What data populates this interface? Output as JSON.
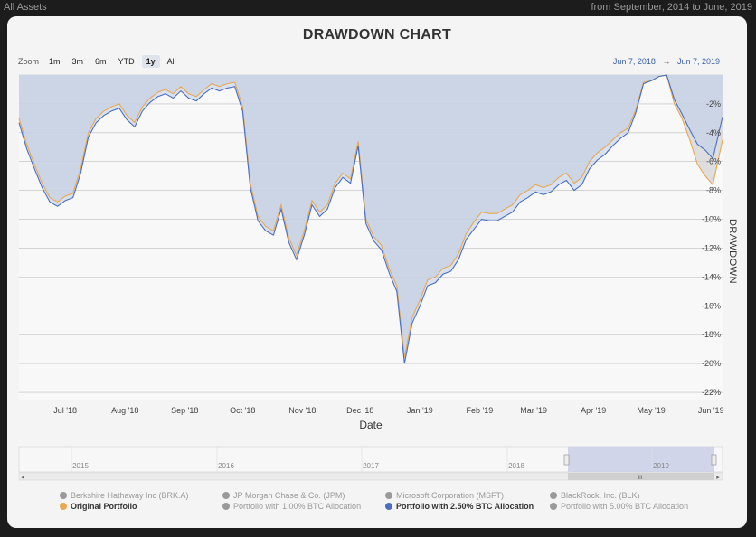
{
  "header": {
    "left_label": "All Assets",
    "right_label": "from September, 2014 to June, 2019"
  },
  "zoom": {
    "label": "Zoom",
    "buttons": [
      "1m",
      "3m",
      "6m",
      "YTD",
      "1y",
      "All"
    ],
    "active": "1y"
  },
  "date_range": {
    "from": "Jun 7, 2018",
    "arrow": "→",
    "to": "Jun 7, 2019"
  },
  "navigator": {
    "years": [
      "2015",
      "2016",
      "2017",
      "2018",
      "2019"
    ],
    "scroll_left": "◂",
    "scroll_right": "▸",
    "grip": "III"
  },
  "legend": [
    {
      "label": "Berkshire Hathaway Inc (BRK.A)",
      "color": "#9a9a9a",
      "active": false
    },
    {
      "label": "JP Morgan Chase & Co. (JPM)",
      "color": "#9a9a9a",
      "active": false
    },
    {
      "label": "Microsoft Corporation (MSFT)",
      "color": "#9a9a9a",
      "active": false
    },
    {
      "label": "BlackRock, Inc. (BLK)",
      "color": "#9a9a9a",
      "active": false
    },
    {
      "label": "Original Portfolio",
      "color": "#e8a850",
      "active": true
    },
    {
      "label": "Portfolio with 1.00% BTC Allocation",
      "color": "#9a9a9a",
      "active": false
    },
    {
      "label": "Portfolio with 2.50% BTC Allocation",
      "color": "#4a6fc0",
      "active": true
    },
    {
      "label": "Portfolio with 5.00% BTC Allocation",
      "color": "#9a9a9a",
      "active": false
    }
  ],
  "chart_data": {
    "type": "area",
    "title": "DRAWDOWN CHART",
    "xlabel": "Date",
    "ylabel": "DRAWDOWN",
    "ylim": [
      -22.5,
      0
    ],
    "y_ticks": [
      -2,
      -4,
      -6,
      -8,
      -10,
      -12,
      -14,
      -16,
      -18,
      -20,
      -22
    ],
    "y_tick_labels": [
      "-2%",
      "-4%",
      "-6%",
      "-8%",
      "-10%",
      "-12%",
      "-14%",
      "-16%",
      "-18%",
      "-20%",
      "-22%"
    ],
    "x_ticks": [
      {
        "date": "2018-07-01",
        "label": "Jul '18"
      },
      {
        "date": "2018-08-01",
        "label": "Aug '18"
      },
      {
        "date": "2018-09-01",
        "label": "Sep '18"
      },
      {
        "date": "2018-10-01",
        "label": "Oct '18"
      },
      {
        "date": "2018-11-01",
        "label": "Nov '18"
      },
      {
        "date": "2018-12-01",
        "label": "Dec '18"
      },
      {
        "date": "2019-01-01",
        "label": "Jan '19"
      },
      {
        "date": "2019-02-01",
        "label": "Feb '19"
      },
      {
        "date": "2019-03-01",
        "label": "Mar '19"
      },
      {
        "date": "2019-04-01",
        "label": "Apr '19"
      },
      {
        "date": "2019-05-01",
        "label": "May '19"
      },
      {
        "date": "2019-06-01",
        "label": "Jun '19"
      }
    ],
    "x": [
      "2018-06-07",
      "2018-06-11",
      "2018-06-15",
      "2018-06-19",
      "2018-06-23",
      "2018-06-27",
      "2018-07-01",
      "2018-07-05",
      "2018-07-09",
      "2018-07-13",
      "2018-07-17",
      "2018-07-21",
      "2018-07-25",
      "2018-07-29",
      "2018-08-02",
      "2018-08-06",
      "2018-08-10",
      "2018-08-14",
      "2018-08-18",
      "2018-08-22",
      "2018-08-26",
      "2018-08-30",
      "2018-09-03",
      "2018-09-07",
      "2018-09-11",
      "2018-09-15",
      "2018-09-19",
      "2018-09-23",
      "2018-09-27",
      "2018-10-01",
      "2018-10-05",
      "2018-10-09",
      "2018-10-13",
      "2018-10-17",
      "2018-10-21",
      "2018-10-25",
      "2018-10-29",
      "2018-11-02",
      "2018-11-06",
      "2018-11-10",
      "2018-11-14",
      "2018-11-18",
      "2018-11-22",
      "2018-11-26",
      "2018-11-30",
      "2018-12-04",
      "2018-12-08",
      "2018-12-12",
      "2018-12-16",
      "2018-12-20",
      "2018-12-24",
      "2018-12-28",
      "2019-01-01",
      "2019-01-05",
      "2019-01-09",
      "2019-01-13",
      "2019-01-17",
      "2019-01-21",
      "2019-01-25",
      "2019-01-29",
      "2019-02-02",
      "2019-02-06",
      "2019-02-10",
      "2019-02-14",
      "2019-02-18",
      "2019-02-22",
      "2019-02-26",
      "2019-03-02",
      "2019-03-06",
      "2019-03-10",
      "2019-03-14",
      "2019-03-18",
      "2019-03-22",
      "2019-03-26",
      "2019-03-30",
      "2019-04-03",
      "2019-04-07",
      "2019-04-11",
      "2019-04-15",
      "2019-04-19",
      "2019-04-23",
      "2019-04-27",
      "2019-05-01",
      "2019-05-05",
      "2019-05-09",
      "2019-05-13",
      "2019-05-17",
      "2019-05-21",
      "2019-05-25",
      "2019-05-29",
      "2019-06-02",
      "2019-06-07"
    ],
    "series": [
      {
        "name": "Original Portfolio",
        "color": "#e8a850",
        "values": [
          -3.0,
          -4.8,
          -6.2,
          -7.5,
          -8.5,
          -8.8,
          -8.4,
          -8.2,
          -6.5,
          -4.0,
          -3.0,
          -2.5,
          -2.2,
          -2.0,
          -2.8,
          -3.3,
          -2.2,
          -1.6,
          -1.2,
          -1.0,
          -1.3,
          -0.8,
          -1.3,
          -1.5,
          -1.0,
          -0.6,
          -0.8,
          -0.6,
          -0.5,
          -2.2,
          -7.5,
          -9.8,
          -10.5,
          -10.8,
          -9.0,
          -11.3,
          -12.5,
          -10.8,
          -8.7,
          -9.5,
          -9.0,
          -7.5,
          -6.8,
          -7.2,
          -4.6,
          -10.0,
          -11.2,
          -11.8,
          -13.4,
          -14.6,
          -19.6,
          -16.8,
          -15.6,
          -14.2,
          -14.0,
          -13.4,
          -13.2,
          -12.4,
          -11.0,
          -10.2,
          -9.5,
          -9.6,
          -9.6,
          -9.3,
          -9.0,
          -8.3,
          -8.0,
          -7.6,
          -7.8,
          -7.6,
          -7.1,
          -6.8,
          -7.5,
          -7.1,
          -6.0,
          -5.4,
          -5.0,
          -4.5,
          -4.0,
          -3.7,
          -2.4,
          -0.5,
          -0.4,
          -0.1,
          0.0,
          -2.0,
          -3.0,
          -4.5,
          -6.2,
          -7.0,
          -7.6,
          -4.5
        ]
      },
      {
        "name": "Portfolio with 2.50% BTC Allocation",
        "color": "#4a6fc0",
        "values": [
          -3.3,
          -5.1,
          -6.5,
          -7.8,
          -8.8,
          -9.1,
          -8.7,
          -8.5,
          -6.8,
          -4.3,
          -3.3,
          -2.8,
          -2.5,
          -2.3,
          -3.1,
          -3.6,
          -2.5,
          -1.9,
          -1.5,
          -1.3,
          -1.6,
          -1.1,
          -1.6,
          -1.8,
          -1.3,
          -0.9,
          -1.1,
          -0.9,
          -0.8,
          -2.5,
          -7.8,
          -10.1,
          -10.8,
          -11.1,
          -9.3,
          -11.6,
          -12.8,
          -11.1,
          -9.0,
          -9.8,
          -9.3,
          -7.8,
          -7.1,
          -7.5,
          -4.9,
          -10.3,
          -11.5,
          -12.1,
          -13.7,
          -15.0,
          -20.0,
          -17.2,
          -16.0,
          -14.6,
          -14.4,
          -13.8,
          -13.6,
          -12.8,
          -11.4,
          -10.7,
          -10.0,
          -10.1,
          -10.1,
          -9.8,
          -9.5,
          -8.8,
          -8.5,
          -8.1,
          -8.3,
          -8.1,
          -7.6,
          -7.3,
          -8.0,
          -7.6,
          -6.5,
          -5.9,
          -5.5,
          -4.9,
          -4.4,
          -4.0,
          -2.6,
          -0.6,
          -0.4,
          -0.1,
          0.0,
          -1.7,
          -2.7,
          -3.8,
          -4.8,
          -5.2,
          -5.8,
          -2.9
        ]
      }
    ]
  }
}
